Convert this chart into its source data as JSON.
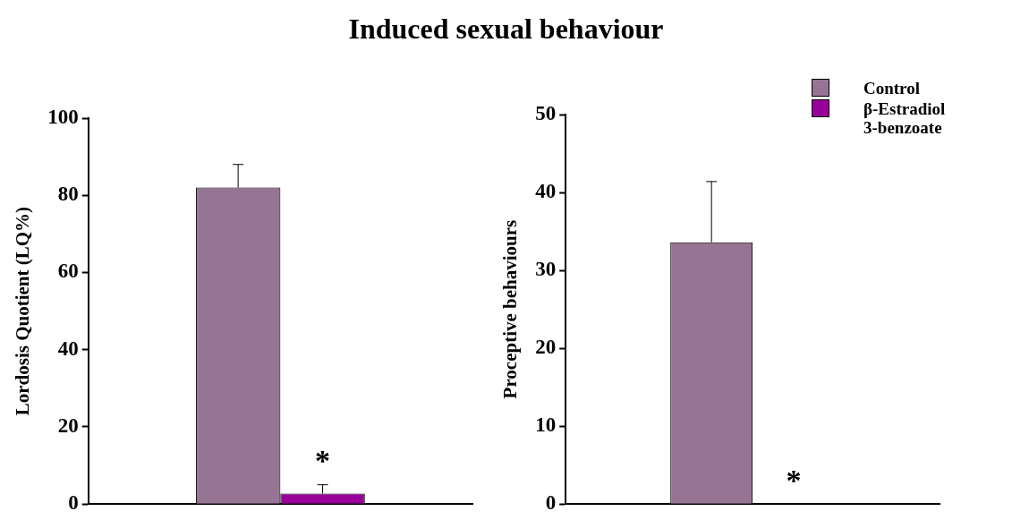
{
  "chart_data": [
    {
      "type": "bar",
      "title": "Induced sexual behaviour",
      "ylabel": "Lordosis Quotient (LQ%)",
      "categories": [
        null
      ],
      "series": [
        {
          "color": "#967493",
          "values": [
            82
          ],
          "errors": [
            6
          ]
        },
        {
          "color": "#990099",
          "values": [
            2.7
          ],
          "errors": [
            2.3
          ]
        }
      ],
      "ylim": [
        0,
        100
      ],
      "yticks": [
        0,
        20,
        40,
        60,
        80,
        100
      ],
      "grid": false,
      "annotations": [
        "*"
      ]
    },
    {
      "type": "bar",
      "ylabel": "Proceptive behaviours",
      "categories": [
        null
      ],
      "series": [
        {
          "name": "Control",
          "color": "#967493",
          "values": [
            33.6
          ],
          "errors": [
            7.8
          ]
        },
        {
          "name": "β-Estradiol 3-benzoate",
          "color": "#990099",
          "values": [
            0
          ],
          "errors": [
            null
          ]
        }
      ],
      "ylim": [
        0,
        50
      ],
      "yticks": [
        0,
        10,
        20,
        30,
        40,
        50
      ],
      "grid": false,
      "legend": "top right",
      "annotations": [
        "*"
      ]
    }
  ]
}
